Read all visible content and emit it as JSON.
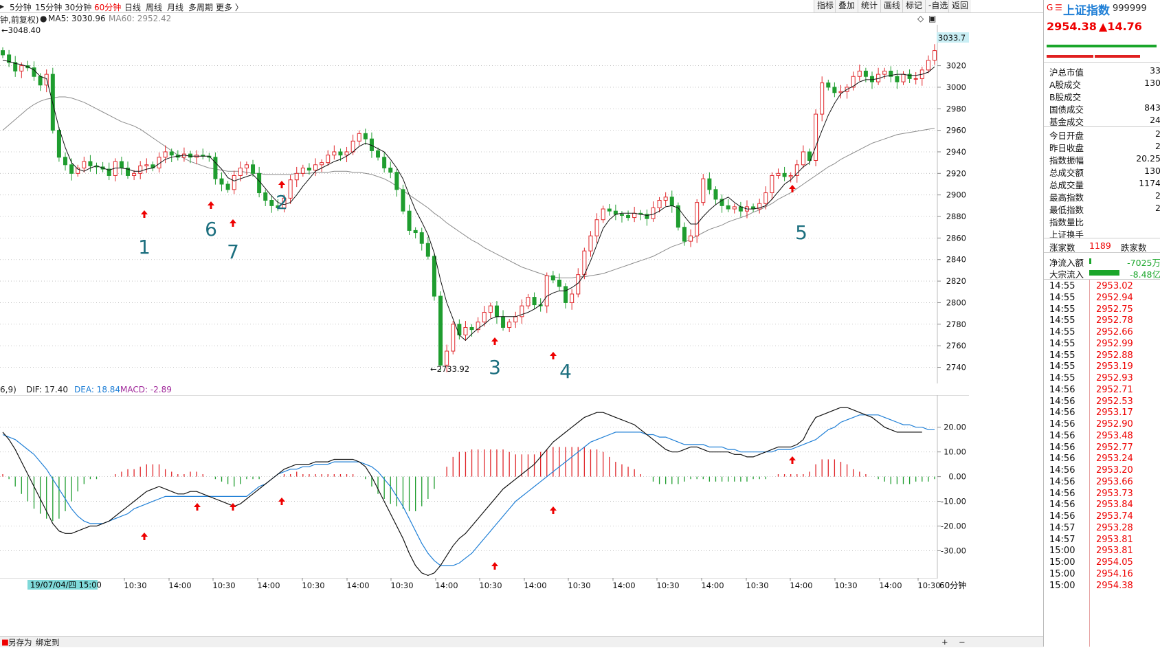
{
  "toolbar": {
    "periods": [
      "5分钟",
      "15分钟",
      "30分钟",
      "60分钟",
      "日线",
      "周线",
      "月线",
      "多周期",
      "更多 〉"
    ],
    "active_period": "60分钟",
    "tools": [
      "指标",
      "叠加",
      "统计",
      "画线",
      "标记",
      "-自选",
      "返回"
    ]
  },
  "main_legend": {
    "mode": "钟,前复权)",
    "ma5": "MA5: 3030.96",
    "ma60": "MA60: 2952.42",
    "high_marker": "3048.40",
    "low_marker": "2733.92",
    "last_price_tag": "3033.7"
  },
  "macd_legend": {
    "params": "6,9)",
    "dif": "DIF: 17.40",
    "dea": "DEA: 18.84",
    "macd": "MACD: -2.89"
  },
  "annotations": [
    "1",
    "6",
    "7",
    "2",
    "3",
    "4",
    "5"
  ],
  "bottom": {
    "save_label": "另存为",
    "bind_label": "绑定到",
    "date_label": "19/07/04/四 15:00",
    "period_label": "60分钟",
    "plus": "+",
    "minus": "−"
  },
  "right_panel": {
    "index_name": "上证指数",
    "index_code": "999999",
    "price": "2954.38",
    "change": "▲14.76",
    "stats": [
      {
        "label": "沪总市值",
        "value": "33"
      },
      {
        "label": "A股成交",
        "value": "130"
      },
      {
        "label": "B股成交",
        "value": ""
      },
      {
        "label": "国债成交",
        "value": "843"
      },
      {
        "label": "基金成交",
        "value": "24"
      },
      {
        "label": "今日开盘",
        "value": "2"
      },
      {
        "label": "昨日收盘",
        "value": "2"
      },
      {
        "label": "指数振幅",
        "value": "20.25"
      },
      {
        "label": "总成交额",
        "value": "130"
      },
      {
        "label": "总成交量",
        "value": "1174"
      },
      {
        "label": "最高指数",
        "value": "2"
      },
      {
        "label": "最低指数",
        "value": "2"
      },
      {
        "label": "指数量比",
        "value": ""
      },
      {
        "label": "上证换手",
        "value": ""
      }
    ],
    "rise_label": "涨家数",
    "rise_value": "1189",
    "fall_label": "跌家数",
    "netflow_label": "净流入额",
    "netflow_value": "-7025万",
    "block_label": "大宗流入",
    "block_value": "-8.48亿",
    "ticks": [
      {
        "time": "14:55",
        "price": "2953.02"
      },
      {
        "time": "14:55",
        "price": "2952.94"
      },
      {
        "time": "14:55",
        "price": "2952.75"
      },
      {
        "time": "14:55",
        "price": "2952.78"
      },
      {
        "time": "14:55",
        "price": "2952.66"
      },
      {
        "time": "14:55",
        "price": "2952.99"
      },
      {
        "time": "14:55",
        "price": "2952.88"
      },
      {
        "time": "14:55",
        "price": "2953.19"
      },
      {
        "time": "14:55",
        "price": "2952.93"
      },
      {
        "time": "14:56",
        "price": "2952.71"
      },
      {
        "time": "14:56",
        "price": "2952.53"
      },
      {
        "time": "14:56",
        "price": "2953.17"
      },
      {
        "time": "14:56",
        "price": "2952.90"
      },
      {
        "time": "14:56",
        "price": "2953.48"
      },
      {
        "time": "14:56",
        "price": "2952.77"
      },
      {
        "time": "14:56",
        "price": "2953.24"
      },
      {
        "time": "14:56",
        "price": "2953.20"
      },
      {
        "time": "14:56",
        "price": "2953.66"
      },
      {
        "time": "14:56",
        "price": "2953.73"
      },
      {
        "time": "14:56",
        "price": "2953.84"
      },
      {
        "time": "14:56",
        "price": "2953.74"
      },
      {
        "time": "14:57",
        "price": "2953.28"
      },
      {
        "time": "14:57",
        "price": "2953.81"
      },
      {
        "time": "15:00",
        "price": "2953.81"
      },
      {
        "time": "15:00",
        "price": "2954.05"
      },
      {
        "time": "15:00",
        "price": "2954.16"
      },
      {
        "time": "15:00",
        "price": "2954.38"
      }
    ]
  },
  "chart_data": [
    {
      "type": "candlestick",
      "y_ticks": [
        "3020",
        "3000",
        "2980",
        "2960",
        "2940",
        "2920",
        "2900",
        "2880",
        "2860",
        "2840",
        "2820",
        "2800",
        "2780",
        "2760",
        "2740"
      ],
      "ylim": [
        2725,
        3058
      ],
      "x_ticks": [
        "10:30",
        "14:00",
        "10:30",
        "14:00",
        "10:30",
        "14:00",
        "10:30",
        "14:00",
        "10:30",
        "14:00",
        "10:30",
        "14:00",
        "10:30",
        "14:00",
        "10:30",
        "14:00",
        "10:30",
        "14:00",
        "10:30",
        "14:00",
        "10:30"
      ],
      "close": [
        3030,
        3023,
        3015,
        3020,
        3018,
        3010,
        3002,
        3012,
        2960,
        2935,
        2928,
        2920,
        2925,
        2931,
        2927,
        2926,
        2924,
        2918,
        2931,
        2925,
        2918,
        2920,
        2927,
        2928,
        2925,
        2935,
        2940,
        2937,
        2935,
        2938,
        2935,
        2937,
        2936,
        2935,
        2915,
        2910,
        2905,
        2918,
        2925,
        2928,
        2920,
        2902,
        2895,
        2890,
        2888,
        2897,
        2914,
        2920,
        2925,
        2923,
        2928,
        2930,
        2937,
        2940,
        2937,
        2940,
        2950,
        2957,
        2952,
        2941,
        2935,
        2925,
        2921,
        2905,
        2885,
        2867,
        2865,
        2855,
        2843,
        2806,
        2742,
        2755,
        2780,
        2770,
        2777,
        2775,
        2782,
        2791,
        2797,
        2787,
        2777,
        2782,
        2787,
        2797,
        2805,
        2798,
        2797,
        2825,
        2821,
        2815,
        2800,
        2808,
        2826,
        2848,
        2862,
        2877,
        2887,
        2885,
        2882,
        2881,
        2879,
        2883,
        2882,
        2878,
        2888,
        2895,
        2898,
        2890,
        2870,
        2857,
        2862,
        2893,
        2915,
        2905,
        2896,
        2890,
        2887,
        2889,
        2885,
        2889,
        2887,
        2892,
        2902,
        2918,
        2920,
        2917,
        2918,
        2928,
        2940,
        2932,
        2975,
        3004,
        3000,
        2995,
        2996,
        3000,
        3010,
        3015,
        3010,
        3005,
        3012,
        3015,
        3010,
        3005,
        3012,
        3008,
        3008,
        3016,
        3025,
        3034
      ],
      "ma5": [
        3025,
        3024,
        3022,
        3021,
        3019,
        3016,
        3010,
        3008,
        2985,
        2962,
        2944,
        2930,
        2924,
        2922,
        2925,
        2927,
        2925,
        2923,
        2925,
        2925,
        2924,
        2922,
        2922,
        2924,
        2925,
        2929,
        2933,
        2935,
        2936,
        2937,
        2936,
        2936,
        2936,
        2936,
        2930,
        2924,
        2916,
        2913,
        2915,
        2917,
        2919,
        2913,
        2906,
        2899,
        2893,
        2891,
        2893,
        2900,
        2908,
        2915,
        2922,
        2925,
        2928,
        2931,
        2933,
        2936,
        2940,
        2945,
        2948,
        2946,
        2943,
        2940,
        2933,
        2925,
        2915,
        2900,
        2886,
        2875,
        2863,
        2846,
        2821,
        2800,
        2785,
        2770,
        2765,
        2771,
        2776,
        2780,
        2785,
        2787,
        2787,
        2787,
        2787,
        2789,
        2791,
        2794,
        2798,
        2806,
        2809,
        2811,
        2811,
        2814,
        2818,
        2826,
        2839,
        2854,
        2869,
        2877,
        2882,
        2883,
        2883,
        2883,
        2882,
        2881,
        2882,
        2885,
        2889,
        2890,
        2888,
        2880,
        2873,
        2873,
        2880,
        2886,
        2891,
        2895,
        2898,
        2893,
        2889,
        2887,
        2887,
        2888,
        2890,
        2896,
        2903,
        2910,
        2914,
        2920,
        2926,
        2930,
        2945,
        2960,
        2974,
        2985,
        2994,
        2998,
        3001,
        3005,
        3007,
        3007,
        3008,
        3010,
        3011,
        3012,
        3012,
        3011,
        3011,
        3012,
        3014,
        3019
      ],
      "ma60": [
        2960,
        2965,
        2970,
        2975,
        2980,
        2984,
        2987,
        2989,
        2990,
        2991,
        2991,
        2990,
        2988,
        2986,
        2983,
        2980,
        2977,
        2974,
        2971,
        2968,
        2966,
        2964,
        2961,
        2957,
        2953,
        2949,
        2945,
        2941,
        2937,
        2934,
        2931,
        2929,
        2927,
        2925,
        2924,
        2923,
        2922,
        2922,
        2922,
        2921,
        2920,
        2920,
        2919,
        2919,
        2919,
        2919,
        2919,
        2920,
        2920,
        2920,
        2921,
        2921,
        2921,
        2922,
        2922,
        2922,
        2921,
        2921,
        2920,
        2919,
        2917,
        2915,
        2912,
        2908,
        2904,
        2900,
        2896,
        2892,
        2888,
        2883,
        2879,
        2874,
        2870,
        2866,
        2862,
        2858,
        2855,
        2851,
        2848,
        2845,
        2842,
        2839,
        2836,
        2833,
        2831,
        2829,
        2827,
        2825,
        2824,
        2823,
        2823,
        2823,
        2824,
        2824,
        2825,
        2826,
        2827,
        2829,
        2831,
        2833,
        2835,
        2837,
        2839,
        2841,
        2843,
        2846,
        2849,
        2852,
        2854,
        2856,
        2859,
        2862,
        2865,
        2868,
        2870,
        2872,
        2875,
        2877,
        2879,
        2881,
        2884,
        2886,
        2889,
        2892,
        2896,
        2899,
        2902,
        2906,
        2910,
        2914,
        2918,
        2922,
        2926,
        2929,
        2933,
        2936,
        2939,
        2942,
        2945,
        2948,
        2950,
        2952,
        2954,
        2956,
        2957,
        2958,
        2959,
        2960,
        2961,
        2962
      ]
    },
    {
      "type": "macd",
      "y_ticks": [
        "20.00",
        "10.00",
        "0.00",
        "-10.00",
        "-20.00",
        "-30.00"
      ],
      "ylim": [
        -41,
        33
      ],
      "dif": [
        18,
        15,
        11,
        6,
        1,
        -4,
        -9,
        -14,
        -19,
        -22,
        -23,
        -23,
        -22,
        -21,
        -20,
        -20,
        -19,
        -18,
        -16,
        -14,
        -12,
        -10,
        -8,
        -6,
        -5,
        -4,
        -5,
        -6,
        -7,
        -7,
        -6,
        -6,
        -7,
        -8,
        -9,
        -10,
        -11,
        -12,
        -11,
        -9,
        -7,
        -5,
        -3,
        -1,
        1,
        3,
        4,
        5,
        5,
        5,
        6,
        6,
        6,
        7,
        7,
        7,
        7,
        6,
        4,
        0,
        -5,
        -10,
        -15,
        -20,
        -25,
        -31,
        -36,
        -39,
        -40,
        -39,
        -36,
        -32,
        -28,
        -25,
        -23,
        -20,
        -17,
        -14,
        -11,
        -8,
        -5,
        -3,
        -1,
        1,
        3,
        5,
        8,
        11,
        14,
        16,
        18,
        20,
        22,
        24,
        25,
        26,
        26,
        25,
        24,
        23,
        22,
        21,
        19,
        17,
        15,
        13,
        11,
        10,
        10,
        11,
        12,
        12,
        11,
        10,
        10,
        10,
        10,
        9,
        9,
        8,
        8,
        9,
        10,
        11,
        12,
        12,
        12,
        13,
        15,
        20,
        24,
        25,
        26,
        27,
        28,
        28,
        27,
        26,
        25,
        24,
        22,
        20,
        19,
        18,
        18,
        18,
        18,
        18
      ],
      "dea": [
        17,
        16,
        15,
        13,
        11,
        9,
        6,
        3,
        -1,
        -5,
        -9,
        -13,
        -16,
        -18,
        -19,
        -19,
        -19,
        -18,
        -17,
        -16,
        -15,
        -13,
        -12,
        -11,
        -10,
        -9,
        -8,
        -8,
        -8,
        -8,
        -8,
        -8,
        -8,
        -8,
        -8,
        -8,
        -8,
        -8,
        -8,
        -8,
        -6,
        -4,
        -3,
        -1,
        1,
        2,
        3,
        3,
        4,
        4,
        5,
        5,
        5,
        6,
        6,
        6,
        6,
        6,
        5,
        4,
        2,
        -1,
        -4,
        -8,
        -12,
        -17,
        -22,
        -27,
        -31,
        -34,
        -36,
        -36,
        -36,
        -35,
        -33,
        -31,
        -28,
        -25,
        -22,
        -19,
        -16,
        -13,
        -10,
        -8,
        -6,
        -4,
        -2,
        0,
        2,
        4,
        6,
        8,
        10,
        12,
        14,
        15,
        16,
        17,
        18,
        18,
        18,
        18,
        18,
        17,
        17,
        16,
        16,
        15,
        14,
        13,
        13,
        13,
        13,
        12,
        12,
        12,
        11,
        11,
        10,
        10,
        10,
        10,
        10,
        10,
        11,
        11,
        11,
        12,
        13,
        14,
        15,
        17,
        19,
        20,
        22,
        23,
        24,
        25,
        25,
        25,
        25,
        24,
        23,
        22,
        21,
        21,
        20,
        20,
        19,
        19
      ],
      "hist": [
        1,
        -1,
        -4,
        -7,
        -10,
        -13,
        -15,
        -17,
        -18,
        -17,
        -14,
        -10,
        -6,
        -3,
        -1,
        -1,
        0,
        0,
        1,
        2,
        3,
        3,
        4,
        5,
        5,
        5,
        3,
        2,
        1,
        1,
        2,
        2,
        1,
        0,
        -1,
        -2,
        -3,
        -4,
        -3,
        -1,
        -1,
        -1,
        0,
        0,
        0,
        1,
        1,
        2,
        1,
        1,
        1,
        1,
        1,
        1,
        1,
        1,
        1,
        0,
        -1,
        -4,
        -7,
        -9,
        -11,
        -12,
        -13,
        -14,
        -14,
        -12,
        -9,
        -5,
        0,
        4,
        8,
        10,
        10,
        11,
        11,
        11,
        11,
        11,
        11,
        10,
        9,
        9,
        9,
        9,
        10,
        11,
        12,
        12,
        12,
        12,
        12,
        12,
        11,
        11,
        10,
        8,
        6,
        5,
        4,
        3,
        1,
        0,
        -2,
        -3,
        -3,
        -3,
        -3,
        -2,
        -1,
        -1,
        -1,
        -2,
        -2,
        -2,
        -2,
        -2,
        -2,
        -2,
        -1,
        -1,
        -1,
        0,
        1,
        1,
        1,
        1,
        1,
        2,
        5,
        7,
        7,
        7,
        6,
        5,
        3,
        2,
        1,
        0,
        -1,
        -2,
        -3,
        -3,
        -3,
        -3,
        -2,
        -2,
        -2,
        -1
      ]
    }
  ]
}
